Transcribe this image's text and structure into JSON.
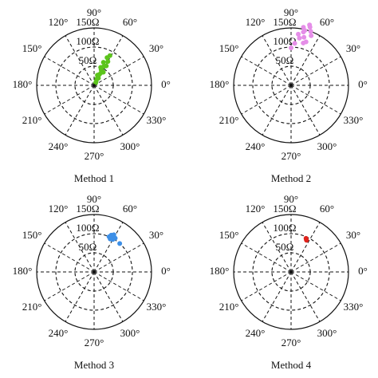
{
  "chart_data": [
    {
      "type": "polar_scatter",
      "title": "Method 1",
      "color": "#5cc41c",
      "theta": [
        62,
        65,
        60,
        68,
        58,
        63,
        70,
        66,
        55,
        61,
        64,
        72,
        59,
        67,
        63,
        57
      ],
      "r": [
        88,
        80,
        72,
        65,
        60,
        55,
        50,
        45,
        42,
        38,
        32,
        28,
        22,
        18,
        12,
        8
      ],
      "rlim": [
        0,
        150
      ],
      "rticks": [
        {
          "value": 50,
          "label": "50Ω"
        },
        {
          "value": 100,
          "label": "100Ω"
        },
        {
          "value": 150,
          "label": "150Ω"
        }
      ],
      "thetaticks": [
        {
          "value": 0,
          "label": "0°"
        },
        {
          "value": 30,
          "label": "30°"
        },
        {
          "value": 60,
          "label": "60°"
        },
        {
          "value": 90,
          "label": "90°"
        },
        {
          "value": 120,
          "label": "120°"
        },
        {
          "value": 150,
          "label": "150°"
        },
        {
          "value": 180,
          "label": "180°"
        },
        {
          "value": 210,
          "label": "210°"
        },
        {
          "value": 240,
          "label": "240°"
        },
        {
          "value": 270,
          "label": "270°"
        },
        {
          "value": 300,
          "label": "300°"
        },
        {
          "value": 330,
          "label": "330°"
        }
      ]
    },
    {
      "type": "polar_scatter",
      "title": "Method 2",
      "color": "#e58ee8",
      "theta": [
        77,
        72,
        70,
        75,
        80,
        68,
        74,
        82,
        78,
        71,
        85,
        90,
        76,
        73
      ],
      "r": [
        143,
        160,
        150,
        130,
        125,
        140,
        115,
        135,
        155,
        120,
        110,
        98,
        148,
        165
      ],
      "rlim": [
        0,
        150
      ],
      "rticks": [
        {
          "value": 50,
          "label": "50Ω"
        },
        {
          "value": 100,
          "label": "100Ω"
        },
        {
          "value": 150,
          "label": "150Ω"
        }
      ],
      "thetaticks": [
        {
          "value": 0,
          "label": "0°"
        },
        {
          "value": 30,
          "label": "30°"
        },
        {
          "value": 60,
          "label": "60°"
        },
        {
          "value": 90,
          "label": "90°"
        },
        {
          "value": 120,
          "label": "120°"
        },
        {
          "value": 150,
          "label": "150°"
        },
        {
          "value": 180,
          "label": "180°"
        },
        {
          "value": 210,
          "label": "210°"
        },
        {
          "value": 240,
          "label": "240°"
        },
        {
          "value": 270,
          "label": "270°"
        },
        {
          "value": 300,
          "label": "300°"
        },
        {
          "value": 330,
          "label": "330°"
        }
      ]
    },
    {
      "type": "polar_scatter",
      "title": "Method 3",
      "color": "#3d8fe6",
      "theta": [
        63,
        65,
        60,
        67,
        62,
        58,
        64,
        48
      ],
      "r": [
        102,
        106,
        98,
        100,
        110,
        104,
        96,
        100
      ],
      "rlim": [
        0,
        150
      ],
      "rticks": [
        {
          "value": 50,
          "label": "50Ω"
        },
        {
          "value": 100,
          "label": "100Ω"
        },
        {
          "value": 150,
          "label": "150Ω"
        }
      ],
      "thetaticks": [
        {
          "value": 0,
          "label": "0°"
        },
        {
          "value": 30,
          "label": "30°"
        },
        {
          "value": 60,
          "label": "60°"
        },
        {
          "value": 90,
          "label": "90°"
        },
        {
          "value": 120,
          "label": "120°"
        },
        {
          "value": 150,
          "label": "150°"
        },
        {
          "value": 180,
          "label": "180°"
        },
        {
          "value": 210,
          "label": "210°"
        },
        {
          "value": 240,
          "label": "240°"
        },
        {
          "value": 270,
          "label": "270°"
        },
        {
          "value": 300,
          "label": "300°"
        },
        {
          "value": 330,
          "label": "330°"
        }
      ]
    },
    {
      "type": "polar_scatter",
      "title": "Method 4",
      "color": "#e0231c",
      "theta": [
        65,
        66,
        64
      ],
      "r": [
        94,
        96,
        92
      ],
      "rlim": [
        0,
        150
      ],
      "rticks": [
        {
          "value": 50,
          "label": "50Ω"
        },
        {
          "value": 100,
          "label": "100Ω"
        },
        {
          "value": 150,
          "label": "150Ω"
        }
      ],
      "thetaticks": [
        {
          "value": 0,
          "label": "0°"
        },
        {
          "value": 30,
          "label": "30°"
        },
        {
          "value": 60,
          "label": "60°"
        },
        {
          "value": 90,
          "label": "90°"
        },
        {
          "value": 120,
          "label": "120°"
        },
        {
          "value": 150,
          "label": "150°"
        },
        {
          "value": 180,
          "label": "180°"
        },
        {
          "value": 210,
          "label": "210°"
        },
        {
          "value": 240,
          "label": "240°"
        },
        {
          "value": 270,
          "label": "270°"
        },
        {
          "value": 300,
          "label": "300°"
        },
        {
          "value": 330,
          "label": "330°"
        }
      ]
    }
  ]
}
